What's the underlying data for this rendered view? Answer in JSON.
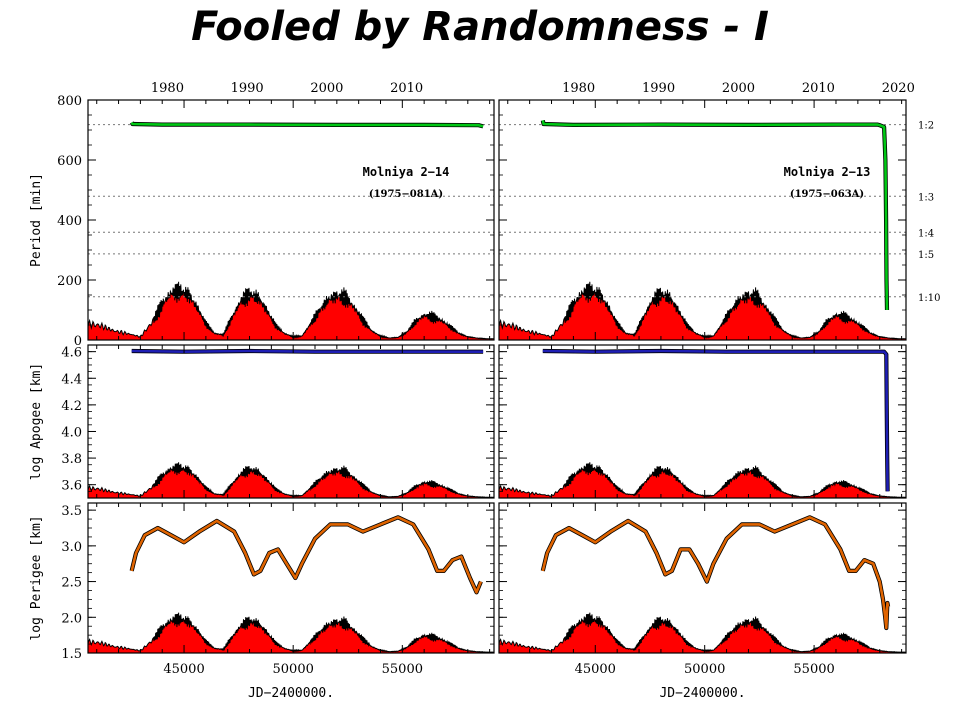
{
  "title": "Fooled by Randomness - I",
  "shared_x": {
    "label": "JD−2400000.",
    "range": [
      40600,
      59200
    ],
    "bottom_ticks": [
      45000,
      50000,
      55000
    ],
    "top_ticks_left": [
      "1980",
      "1990",
      "2000",
      "2010"
    ],
    "top_ticks_right": [
      "1980",
      "1990",
      "2000",
      "2010",
      "2020"
    ],
    "top_tick_jd": {
      "1980": 44239,
      "1990": 47892,
      "2000": 51544,
      "2010": 55197,
      "2020": 58849
    }
  },
  "colors": {
    "activity_fill": "#ff0000",
    "activity_edge": "#000000",
    "period_line": "#00c814",
    "apogee_line": "#1e1eb4",
    "perigee_line": "#e06400",
    "reference_lines": "#777777"
  },
  "chart_data": [
    {
      "type": "line",
      "panel": "period-left",
      "ylabel": "Period [min]",
      "ylim": [
        0,
        800
      ],
      "yticks": [
        "0",
        "200",
        "400",
        "600",
        "800"
      ],
      "annotation": {
        "name": "Molniya 2−14",
        "designation": "(1975−081A)"
      },
      "reference_lines": [
        718,
        479,
        359,
        287,
        144
      ],
      "series": [
        {
          "points": [
            [
              42600,
              725
            ],
            [
              42640,
              720
            ],
            [
              44000,
              718
            ],
            [
              48000,
              718
            ],
            [
              52000,
              717
            ],
            [
              56000,
              717
            ],
            [
              58500,
              716
            ],
            [
              58700,
              712
            ]
          ]
        }
      ],
      "background_series": "solar-activity"
    },
    {
      "type": "line",
      "panel": "period-right",
      "ylim": [
        0,
        800
      ],
      "annotation": {
        "name": "Molniya 2−13",
        "designation": "(1975−063A)"
      },
      "reference_lines": [
        718,
        479,
        359,
        287,
        144
      ],
      "resonance_labels": [
        "1:2",
        "1:3",
        "1:4",
        "1:5",
        "1:10"
      ],
      "series": [
        {
          "points": [
            [
              42600,
              732
            ],
            [
              42640,
              720
            ],
            [
              44000,
              717
            ],
            [
              48000,
              718
            ],
            [
              52000,
              717
            ],
            [
              56000,
              718
            ],
            [
              57900,
              718
            ],
            [
              58000,
              716
            ],
            [
              58200,
              710
            ],
            [
              58260,
              600
            ],
            [
              58290,
              400
            ],
            [
              58310,
              200
            ],
            [
              58330,
              100
            ]
          ]
        }
      ],
      "background_series": "solar-activity"
    },
    {
      "type": "line",
      "panel": "apogee-left",
      "ylabel": "log Apogee [km]",
      "ylim": [
        3.5,
        4.65
      ],
      "yticks": [
        "3.6",
        "3.8",
        "4.0",
        "4.2",
        "4.4",
        "4.6"
      ],
      "series": [
        {
          "points": [
            [
              42600,
              4.605
            ],
            [
              45000,
              4.6
            ],
            [
              48000,
              4.605
            ],
            [
              51000,
              4.6
            ],
            [
              54000,
              4.6
            ],
            [
              57000,
              4.6
            ],
            [
              58700,
              4.6
            ]
          ]
        }
      ],
      "background_series": "solar-activity"
    },
    {
      "type": "line",
      "panel": "apogee-right",
      "ylim": [
        3.5,
        4.65
      ],
      "series": [
        {
          "points": [
            [
              42600,
              4.605
            ],
            [
              45000,
              4.6
            ],
            [
              48000,
              4.605
            ],
            [
              51000,
              4.6
            ],
            [
              54000,
              4.6
            ],
            [
              57000,
              4.6
            ],
            [
              58200,
              4.6
            ],
            [
              58300,
              4.58
            ],
            [
              58320,
              4.2
            ],
            [
              58340,
              3.8
            ],
            [
              58360,
              3.55
            ]
          ]
        }
      ],
      "background_series": "solar-activity"
    },
    {
      "type": "line",
      "panel": "perigee-left",
      "ylabel": "log Perigee [km]",
      "xlabel": "JD−2400000.",
      "ylim": [
        1.5,
        3.6
      ],
      "yticks": [
        "1.5",
        "2.0",
        "2.5",
        "3.0",
        "3.5"
      ],
      "series": [
        {
          "points": [
            [
              42600,
              2.65
            ],
            [
              42800,
              2.9
            ],
            [
              43200,
              3.15
            ],
            [
              43800,
              3.25
            ],
            [
              44400,
              3.15
            ],
            [
              45000,
              3.05
            ],
            [
              45700,
              3.2
            ],
            [
              46500,
              3.35
            ],
            [
              47300,
              3.2
            ],
            [
              47800,
              2.9
            ],
            [
              48200,
              2.6
            ],
            [
              48500,
              2.65
            ],
            [
              48900,
              2.9
            ],
            [
              49300,
              2.95
            ],
            [
              49700,
              2.75
            ],
            [
              50100,
              2.55
            ],
            [
              50400,
              2.75
            ],
            [
              51000,
              3.1
            ],
            [
              51700,
              3.3
            ],
            [
              52500,
              3.3
            ],
            [
              53200,
              3.2
            ],
            [
              54000,
              3.3
            ],
            [
              54800,
              3.4
            ],
            [
              55500,
              3.3
            ],
            [
              56200,
              2.95
            ],
            [
              56600,
              2.65
            ],
            [
              56900,
              2.65
            ],
            [
              57300,
              2.8
            ],
            [
              57700,
              2.85
            ],
            [
              58100,
              2.55
            ],
            [
              58400,
              2.35
            ],
            [
              58600,
              2.5
            ]
          ]
        }
      ],
      "background_series": "solar-activity"
    },
    {
      "type": "line",
      "panel": "perigee-right",
      "xlabel": "JD−2400000.",
      "ylim": [
        1.5,
        3.6
      ],
      "series": [
        {
          "points": [
            [
              42600,
              2.65
            ],
            [
              42800,
              2.9
            ],
            [
              43200,
              3.15
            ],
            [
              43800,
              3.25
            ],
            [
              44400,
              3.15
            ],
            [
              45000,
              3.05
            ],
            [
              45700,
              3.2
            ],
            [
              46500,
              3.35
            ],
            [
              47300,
              3.2
            ],
            [
              47800,
              2.9
            ],
            [
              48200,
              2.6
            ],
            [
              48500,
              2.65
            ],
            [
              48900,
              2.95
            ],
            [
              49300,
              2.95
            ],
            [
              49700,
              2.75
            ],
            [
              50100,
              2.5
            ],
            [
              50400,
              2.75
            ],
            [
              51000,
              3.1
            ],
            [
              51700,
              3.3
            ],
            [
              52500,
              3.3
            ],
            [
              53200,
              3.2
            ],
            [
              54000,
              3.3
            ],
            [
              54800,
              3.4
            ],
            [
              55500,
              3.3
            ],
            [
              56200,
              2.95
            ],
            [
              56600,
              2.65
            ],
            [
              56900,
              2.65
            ],
            [
              57300,
              2.8
            ],
            [
              57700,
              2.75
            ],
            [
              58000,
              2.5
            ],
            [
              58150,
              2.25
            ],
            [
              58250,
              2.0
            ],
            [
              58300,
              1.85
            ],
            [
              58350,
              2.2
            ],
            [
              58380,
              2.15
            ]
          ]
        }
      ],
      "background_series": "solar-activity"
    }
  ],
  "solar_activity": {
    "jd": [
      40600,
      41200,
      41800,
      42400,
      43000,
      43600,
      44000,
      44400,
      44800,
      45200,
      45600,
      46000,
      46400,
      46800,
      47200,
      47600,
      48000,
      48400,
      48800,
      49200,
      49600,
      50000,
      50400,
      50800,
      51200,
      51600,
      52000,
      52400,
      52800,
      53200,
      53600,
      54000,
      54400,
      54800,
      55200,
      55600,
      56000,
      56400,
      56800,
      57200,
      57600,
      58000,
      58400,
      58800,
      59200
    ],
    "level": [
      0.25,
      0.22,
      0.14,
      0.1,
      0.05,
      0.3,
      0.55,
      0.72,
      0.75,
      0.7,
      0.5,
      0.25,
      0.1,
      0.08,
      0.35,
      0.6,
      0.7,
      0.65,
      0.45,
      0.22,
      0.1,
      0.05,
      0.06,
      0.25,
      0.45,
      0.62,
      0.68,
      0.65,
      0.5,
      0.3,
      0.14,
      0.06,
      0.03,
      0.04,
      0.12,
      0.28,
      0.38,
      0.35,
      0.3,
      0.2,
      0.1,
      0.05,
      0.03,
      0.02,
      0.02
    ]
  }
}
